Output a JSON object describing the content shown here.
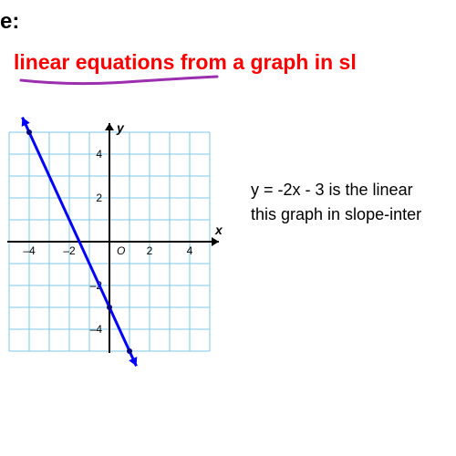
{
  "header_fragment": "e:",
  "title": "linear equations from a graph in sl",
  "underline_color": "#9b2fae",
  "body_line1": "y = -2x - 3 is the linear",
  "body_line2": "this graph in slope-inter",
  "graph": {
    "type": "line",
    "xlim": [
      -5,
      5
    ],
    "ylim": [
      -5.5,
      5.5
    ],
    "xtick_step": 2,
    "ytick_step": 2,
    "xticks_labeled": [
      -4,
      -2,
      2,
      4
    ],
    "yticks_labeled": [
      -4,
      -2,
      2,
      4
    ],
    "grid_color": "#7dc8e8",
    "axis_color": "#000000",
    "line_color": "#0000ff",
    "line_width": 3,
    "background_color": "#ffffff",
    "x_axis_label": "x",
    "y_axis_label": "y",
    "origin_label": "O",
    "line_points": [
      [
        -4,
        5
      ],
      [
        1,
        -5
      ]
    ],
    "marked_points": [
      [
        -4,
        5
      ],
      [
        0,
        -3
      ],
      [
        1,
        -5
      ]
    ],
    "marker_color": "#000080",
    "marker_radius": 3
  }
}
